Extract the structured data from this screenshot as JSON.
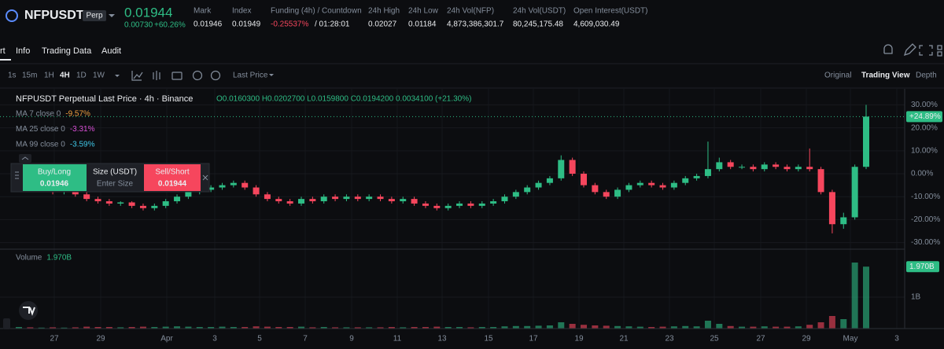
{
  "header": {
    "symbol": "NFPUSDT",
    "badge": "Perp",
    "last_price": "0.01944",
    "change": "0.00730",
    "change_pct": "+60.26%",
    "stats": [
      {
        "label": "Mark",
        "value": "0.01946"
      },
      {
        "label": "Index",
        "value": "0.01949"
      },
      {
        "label": "Funding (4h) / Countdown",
        "value": "-0.25537%",
        "extra": "/ 01:28:01"
      },
      {
        "label": "24h High",
        "value": "0.02027"
      },
      {
        "label": "24h Low",
        "value": "0.01184"
      },
      {
        "label": "24h Vol(NFP)",
        "value": "4,873,386,301.7"
      },
      {
        "label": "24h Vol(USDT)",
        "value": "80,245,175.48"
      },
      {
        "label": "Open Interest(USDT)",
        "value": "4,609,030.49"
      }
    ]
  },
  "tabs": [
    "rt",
    "Info",
    "Trading Data",
    "Audit"
  ],
  "toolbar": {
    "intervals": [
      "1s",
      "15m",
      "1H",
      "4H",
      "1D",
      "1W"
    ],
    "price_type": "Last Price",
    "views": [
      "Original",
      "Trading View",
      "Depth"
    ]
  },
  "chart": {
    "type": "candlestick",
    "title": "NFPUSDT Perpetual Last Price · 4h · Binance",
    "ohlc": "O0.0160300 H0.0202700 L0.0159800 C0.0194200 0.0034100 (+21.30%)",
    "ma": [
      {
        "name": "MA 7 close 0",
        "value": "-9.57%",
        "color": "#f0a040"
      },
      {
        "name": "MA 25 close 0",
        "value": "-3.31%",
        "color": "#d94fd6"
      },
      {
        "name": "MA 99 close 0",
        "value": "-3.59%",
        "color": "#3fc8e8"
      }
    ],
    "ylim": [
      -32.2,
      37
    ],
    "yticks": [
      {
        "value": 30,
        "label": "30.00%"
      },
      {
        "value": 20,
        "label": "20.00%"
      },
      {
        "value": 10,
        "label": "10.00%"
      },
      {
        "value": 0,
        "label": "0.00%"
      },
      {
        "value": -10,
        "label": "-10.00%"
      },
      {
        "value": -20,
        "label": "-20.00%"
      },
      {
        "value": -30,
        "label": "-30.00%"
      }
    ],
    "last_label": "+24.89%",
    "candles": [
      [
        -7,
        -5,
        -8,
        -6
      ],
      [
        -6,
        -5,
        -8,
        -7
      ],
      [
        -7,
        -6,
        -8,
        -6.5
      ],
      [
        -6.5,
        -6,
        -9,
        -8
      ],
      [
        -8,
        -7,
        -9,
        -7.5
      ],
      [
        -7.5,
        -7,
        -10,
        -9
      ],
      [
        -9,
        -8,
        -12,
        -11
      ],
      [
        -11,
        -10,
        -13,
        -12
      ],
      [
        -12,
        -11,
        -14,
        -13
      ],
      [
        -13,
        -12,
        -14,
        -12.5
      ],
      [
        -12.5,
        -12,
        -15,
        -14
      ],
      [
        -14,
        -13,
        -16,
        -15
      ],
      [
        -15,
        -13,
        -16,
        -14
      ],
      [
        -14,
        -11,
        -15,
        -12
      ],
      [
        -12,
        -9,
        -13,
        -10
      ],
      [
        -10,
        -7,
        -11,
        -8
      ],
      [
        -8,
        -6,
        -9,
        -7
      ],
      [
        -7,
        -5,
        -8,
        -6
      ],
      [
        -6,
        -4,
        -7,
        -5
      ],
      [
        -5,
        -3,
        -6,
        -4
      ],
      [
        -4,
        -3,
        -7,
        -6
      ],
      [
        -6,
        -5,
        -10,
        -9
      ],
      [
        -9,
        -8,
        -12,
        -11
      ],
      [
        -11,
        -10,
        -13,
        -12
      ],
      [
        -12,
        -11,
        -14,
        -13
      ],
      [
        -13,
        -10,
        -14,
        -11
      ],
      [
        -11,
        -10,
        -13,
        -12
      ],
      [
        -12,
        -9,
        -13,
        -10
      ],
      [
        -10,
        -9,
        -12,
        -11
      ],
      [
        -11,
        -9,
        -12,
        -10
      ],
      [
        -10,
        -9,
        -12,
        -11
      ],
      [
        -11,
        -9,
        -12,
        -10
      ],
      [
        -10,
        -9,
        -12,
        -11
      ],
      [
        -11,
        -10,
        -13,
        -12
      ],
      [
        -12,
        -10,
        -13,
        -11
      ],
      [
        -11,
        -10,
        -14,
        -13
      ],
      [
        -13,
        -12,
        -15,
        -14
      ],
      [
        -14,
        -13,
        -16,
        -15
      ],
      [
        -15,
        -13,
        -16,
        -14
      ],
      [
        -14,
        -12,
        -15,
        -13
      ],
      [
        -13,
        -12,
        -15,
        -14
      ],
      [
        -14,
        -12,
        -15,
        -13
      ],
      [
        -13,
        -11,
        -14,
        -12
      ],
      [
        -12,
        -9,
        -13,
        -10
      ],
      [
        -10,
        -7,
        -11,
        -8
      ],
      [
        -8,
        -5,
        -9,
        -6
      ],
      [
        -6,
        -3,
        -7,
        -4
      ],
      [
        -4,
        -1,
        -5,
        -2
      ],
      [
        -2,
        8,
        -3,
        6
      ],
      [
        6,
        7,
        -1,
        0
      ],
      [
        0,
        1,
        -6,
        -5
      ],
      [
        -5,
        -4,
        -9,
        -8
      ],
      [
        -8,
        -7,
        -11,
        -10
      ],
      [
        -10,
        -6,
        -11,
        -7
      ],
      [
        -7,
        -4,
        -8,
        -5
      ],
      [
        -5,
        -3,
        -6,
        -4
      ],
      [
        -4,
        -3,
        -6,
        -5
      ],
      [
        -5,
        -4,
        -7,
        -6
      ],
      [
        -6,
        -3,
        -7,
        -4
      ],
      [
        -4,
        -1,
        -5,
        -2
      ],
      [
        -2,
        0,
        -3,
        -1
      ],
      [
        -1,
        14,
        -2,
        2
      ],
      [
        2,
        7,
        1,
        5
      ],
      [
        5,
        6,
        2,
        3
      ],
      [
        3,
        4,
        2,
        3
      ],
      [
        3,
        4,
        1,
        2
      ],
      [
        2,
        5,
        1,
        4
      ],
      [
        4,
        5,
        2,
        3
      ],
      [
        3,
        4,
        1,
        2
      ],
      [
        2,
        4,
        1,
        3
      ],
      [
        3,
        11,
        1,
        2
      ],
      [
        2,
        3,
        -9,
        -8
      ],
      [
        -8,
        -7,
        -26,
        -22
      ],
      [
        -22,
        -17,
        -24,
        -19
      ],
      [
        -19,
        4,
        -20,
        3
      ],
      [
        3,
        30,
        2,
        24.89
      ]
    ],
    "volume": {
      "name": "Volume",
      "last_label": "1.970B",
      "ylim": [
        0,
        2.5
      ],
      "yticks": [
        {
          "value": 1,
          "label": "1B"
        }
      ],
      "values": [
        0.05,
        0.04,
        0.03,
        0.04,
        0.03,
        0.04,
        0.06,
        0.05,
        0.05,
        0.04,
        0.05,
        0.06,
        0.05,
        0.06,
        0.07,
        0.06,
        0.05,
        0.05,
        0.06,
        0.05,
        0.05,
        0.07,
        0.06,
        0.05,
        0.05,
        0.06,
        0.04,
        0.05,
        0.04,
        0.04,
        0.04,
        0.04,
        0.04,
        0.05,
        0.04,
        0.05,
        0.05,
        0.06,
        0.05,
        0.05,
        0.04,
        0.05,
        0.05,
        0.07,
        0.08,
        0.08,
        0.09,
        0.1,
        0.2,
        0.15,
        0.12,
        0.1,
        0.09,
        0.08,
        0.07,
        0.06,
        0.05,
        0.06,
        0.07,
        0.08,
        0.07,
        0.25,
        0.15,
        0.08,
        0.06,
        0.06,
        0.07,
        0.06,
        0.06,
        0.07,
        0.12,
        0.2,
        0.4,
        0.3,
        2.1,
        1.97
      ]
    },
    "x_labels": [
      "27",
      "29",
      "Apr",
      "3",
      "5",
      "7",
      "9",
      "11",
      "13",
      "15",
      "17",
      "19",
      "21",
      "23",
      "25",
      "27",
      "29",
      "May",
      "3"
    ]
  },
  "order_panel": {
    "buy_label": "Buy/Long",
    "buy_price": "0.01946",
    "size_label": "Size (USDT)",
    "size_placeholder": "Enter Size",
    "sell_label": "Sell/Short",
    "sell_price": "0.01944"
  }
}
